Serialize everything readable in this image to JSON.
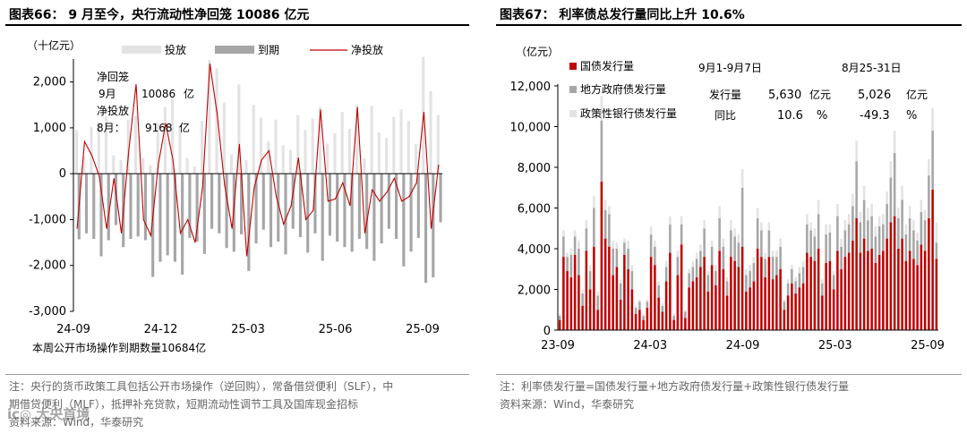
{
  "left": {
    "title": "图表66：  9 月至今，央行流动性净回笼 10086 亿元",
    "unit": "（十亿元）",
    "legend": [
      "投放",
      "到期",
      "净投放"
    ],
    "annotation": {
      "l1": "净回笼",
      "l2a": "9月",
      "l2b": "10086",
      "l2c": "亿",
      "l3": "净投放",
      "l4a": "8月：",
      "l4b": "9168",
      "l4c": "亿"
    },
    "bottom_text": "本周公开市场操作到期数量10684亿",
    "notes": [
      "注：央行的货币政策工具包括公开市场操作（逆回购），常备借贷便利（SLF），中",
      "期借贷便利（MLF），抵押补充贷款，短期流动性调节工具及国库现金招标",
      "资料来源：Wind，华泰研究"
    ]
  },
  "right": {
    "title": "图表67：  利率债总发行量同比上升 10.6%",
    "unit": "（亿元）",
    "legend": [
      "国债发行量",
      "地方政府债发行量",
      "政策性银行债发行量"
    ],
    "table": {
      "head1": "9月1-9月7日",
      "head2": "8月25-31日",
      "row1_label": "发行量",
      "row1_v1": "5,630",
      "row1_u1": "亿元",
      "row1_v2": "5,026",
      "row1_u2": "亿元",
      "row2_label": "同比",
      "row2_v1": "10.6",
      "row2_u1": "%",
      "row2_v2": "-49.3",
      "row2_u2": "%"
    },
    "notes": [
      "注：利率债发行量=国债发行量+地方政府债发行量+政策性银行债发行量",
      "资料来源：Wind，华泰研究"
    ]
  },
  "watermark": "ic◎ 大央首境",
  "colors": {
    "inject": "#e3e3e3",
    "mature": "#a6a6a6",
    "net": "#c00000",
    "gov": "#c00000",
    "local": "#a6a6a6",
    "policy": "#e3e3e3"
  },
  "chart_data": [
    {
      "type": "bar",
      "title": "9 月至今，央行流动性净回笼 10086 亿元",
      "ylabel": "十亿元",
      "ylim": [
        -3000,
        2500
      ],
      "yticks": [
        -3000,
        -2000,
        -1000,
        0,
        1000,
        2000
      ],
      "xtick_labels": [
        "24-09",
        "24-12",
        "25-03",
        "25-06",
        "25-09"
      ],
      "x_range": [
        "2024-09",
        "2025-09"
      ],
      "series": [
        {
          "name": "投放",
          "values": [
            950,
            380,
            1020,
            1120,
            1250,
            400,
            300,
            1180,
            1260,
            350,
            180,
            1100,
            1450,
            1680,
            1050,
            340,
            160,
            1150,
            2480,
            2300,
            1550,
            420,
            1950,
            300,
            1500,
            1220,
            700,
            1180,
            620,
            520,
            1280,
            950,
            1200,
            1450,
            660,
            880,
            1350,
            980,
            1500,
            340,
            1480,
            900,
            780,
            1240,
            1400,
            1150,
            650,
            2550,
            1800,
            1280
          ]
        },
        {
          "name": "到期",
          "values": [
            -1430,
            -1300,
            -1420,
            -1800,
            -1450,
            -1120,
            -1600,
            -1420,
            -1370,
            -1450,
            -2250,
            -1920,
            -1780,
            -1920,
            -2200,
            -1400,
            -1480,
            -1750,
            -1200,
            -1300,
            -1620,
            -1700,
            -1320,
            -2120,
            -1520,
            -1220,
            -1600,
            -1480,
            -1760,
            -1200,
            -1380,
            -1720,
            -1300,
            -1900,
            -1350,
            -1480,
            -1600,
            -1700,
            -1420,
            -1640,
            -1900,
            -1520,
            -1200,
            -1420,
            -2020,
            -1700,
            -1400,
            -2380,
            -2260,
            -1060
          ]
        },
        {
          "name": "净投放",
          "values": [
            -1200,
            700,
            400,
            -50,
            -1200,
            -100,
            -1300,
            500,
            1950,
            -1000,
            -1350,
            200,
            1100,
            300,
            -1300,
            -1000,
            -1500,
            -300,
            2400,
            1280,
            -250,
            -1200,
            650,
            -1800,
            -300,
            300,
            500,
            -500,
            -1100,
            -700,
            350,
            -1000,
            -800,
            1400,
            -600,
            -550,
            -200,
            -700,
            1450,
            -1300,
            -350,
            -600,
            -400,
            -100,
            -600,
            -500,
            -200,
            1350,
            -1200,
            200
          ]
        }
      ]
    },
    {
      "type": "bar",
      "title": "利率债总发行量同比上升 10.6%",
      "ylabel": "亿元",
      "ylim": [
        0,
        12000
      ],
      "yticks": [
        0,
        2000,
        4000,
        6000,
        8000,
        10000,
        12000
      ],
      "xtick_labels": [
        "23-09",
        "24-03",
        "24-09",
        "25-03",
        "25-09"
      ],
      "x_range": [
        "2023-09",
        "2025-09"
      ],
      "stacked": true,
      "series": [
        {
          "name": "国债发行量",
          "values": [
            500,
            3600,
            2900,
            2600,
            3700,
            2700,
            1200,
            3900,
            2000,
            4100,
            1000,
            7300,
            4500,
            4100,
            2700,
            3100,
            1500,
            3700,
            3000,
            2000,
            800,
            1000,
            500,
            1100,
            3600,
            3200,
            1600,
            900,
            2400,
            3800,
            500,
            2700,
            4200,
            600,
            2100,
            2400,
            2600,
            3100,
            3600,
            1900,
            3200,
            2200,
            3900,
            3000,
            1700,
            3600,
            3400,
            3100,
            4100,
            1900,
            2100,
            2400,
            4000,
            3600,
            2600,
            3600,
            2500,
            2700,
            3000,
            1000,
            1700,
            2300,
            1800,
            2100,
            2300,
            3800,
            3600,
            3400,
            4000,
            1700,
            3300,
            3400,
            2000,
            3900,
            3000,
            3600,
            3800,
            4400,
            5500,
            3800,
            4500,
            3900,
            4000,
            3300,
            3700,
            3900,
            4500,
            5300,
            5600,
            4000,
            4500,
            3400,
            3900,
            3500,
            3200,
            4200,
            3900,
            5500,
            6900,
            3500
          ]
        },
        {
          "name": "地方政府债发行量",
          "values": [
            200,
            1000,
            700,
            1100,
            900,
            1300,
            600,
            1100,
            900,
            1900,
            700,
            3000,
            1400,
            1600,
            1300,
            900,
            800,
            600,
            1000,
            900,
            300,
            400,
            200,
            300,
            1100,
            900,
            600,
            300,
            700,
            1400,
            200,
            900,
            1000,
            300,
            700,
            700,
            900,
            800,
            1400,
            800,
            900,
            700,
            1600,
            1100,
            700,
            1300,
            1200,
            1200,
            2900,
            800,
            800,
            900,
            1500,
            1300,
            900,
            1300,
            1100,
            900,
            1100,
            400,
            600,
            700,
            600,
            700,
            800,
            1400,
            1300,
            1200,
            1700,
            600,
            1400,
            1400,
            700,
            1700,
            1100,
            1300,
            1400,
            1700,
            2800,
            1500,
            1900,
            1500,
            1600,
            1300,
            1400,
            1300,
            1700,
            2200,
            3100,
            1500,
            1900,
            1300,
            1600,
            1400,
            1200,
            1600,
            1500,
            2100,
            2900,
            800
          ]
        },
        {
          "name": "政策性银行债发行量",
          "values": [
            100,
            300,
            200,
            300,
            300,
            400,
            200,
            400,
            300,
            600,
            200,
            1200,
            500,
            400,
            400,
            300,
            200,
            200,
            400,
            300,
            100,
            100,
            100,
            100,
            400,
            300,
            200,
            100,
            300,
            400,
            100,
            300,
            400,
            100,
            200,
            300,
            300,
            300,
            400,
            200,
            300,
            300,
            600,
            400,
            200,
            500,
            400,
            400,
            900,
            300,
            300,
            300,
            500,
            400,
            300,
            400,
            300,
            300,
            400,
            100,
            200,
            200,
            200,
            300,
            300,
            500,
            400,
            400,
            700,
            200,
            500,
            400,
            200,
            600,
            400,
            500,
            500,
            600,
            1000,
            500,
            700,
            600,
            600,
            500,
            500,
            500,
            600,
            800,
            1100,
            500,
            700,
            500,
            600,
            500,
            400,
            600,
            500,
            800,
            1100,
            1000
          ]
        }
      ]
    }
  ]
}
